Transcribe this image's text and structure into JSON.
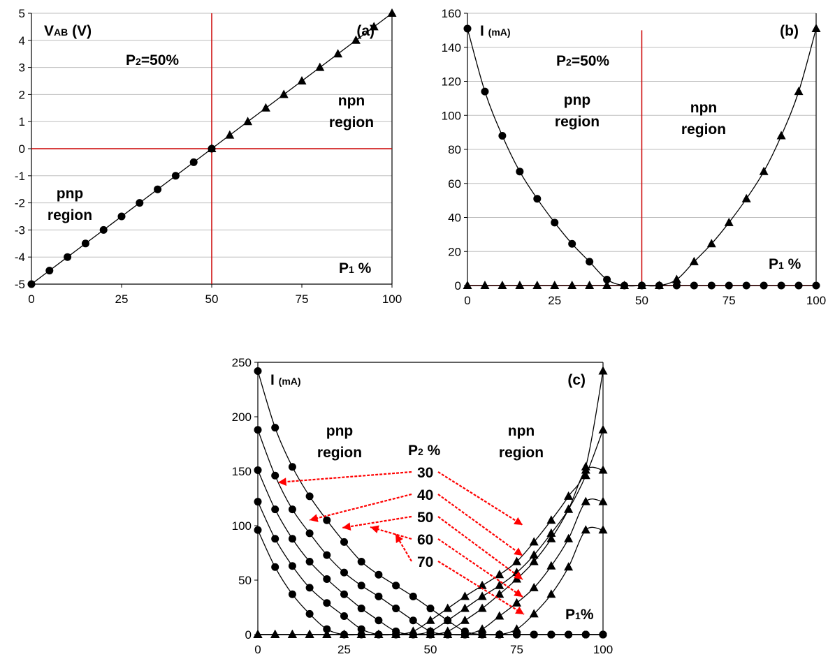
{
  "chart_data": [
    {
      "type": "line",
      "panel_label": "(a)",
      "ylabel": "VAB (V)",
      "xlabel": "P1 %",
      "marker_line_label": "P2=50%",
      "region_labels": {
        "pnp": "pnp region",
        "npn": "npn region"
      },
      "xlim": [
        0,
        100
      ],
      "ylim": [
        -5,
        5
      ],
      "xticks": [
        0,
        25,
        50,
        75,
        100
      ],
      "yticks": [
        -5,
        -4,
        -3,
        -2,
        -1,
        0,
        1,
        2,
        3,
        4,
        5
      ],
      "series": [
        {
          "marker": "circle",
          "x": [
            0,
            5,
            10,
            15,
            20,
            25,
            30,
            35,
            40,
            45,
            50
          ],
          "y": [
            -5,
            -4.5,
            -4,
            -3.5,
            -3,
            -2.5,
            -2,
            -1.5,
            -1,
            -0.5,
            0
          ]
        },
        {
          "marker": "triangle",
          "x": [
            50,
            55,
            60,
            65,
            70,
            75,
            80,
            85,
            90,
            95,
            100
          ],
          "y": [
            0,
            0.5,
            1,
            1.5,
            2,
            2.5,
            3,
            3.5,
            4,
            4.5,
            5
          ]
        }
      ],
      "reference_lines": {
        "x": 50,
        "y": 0,
        "color": "#cc0000"
      },
      "grid": true
    },
    {
      "type": "line",
      "panel_label": "(b)",
      "ylabel": "I (mA)",
      "xlabel": "P1 %",
      "marker_line_label": "P2=50%",
      "region_labels": {
        "pnp": "pnp region",
        "npn": "npn region"
      },
      "xlim": [
        0,
        100
      ],
      "ylim": [
        0,
        160
      ],
      "xticks": [
        0,
        25,
        50,
        75,
        100
      ],
      "yticks": [
        0,
        20,
        40,
        60,
        80,
        100,
        120,
        140,
        160
      ],
      "series": [
        {
          "marker": "circle",
          "x": [
            0,
            5,
            10,
            15,
            20,
            25,
            30,
            35,
            40,
            45,
            50,
            55,
            60,
            65,
            70,
            75,
            80,
            85,
            90,
            95,
            100
          ],
          "y": [
            151,
            114,
            88,
            67,
            51,
            37,
            24.5,
            14,
            3.5,
            0,
            0,
            0,
            0,
            0,
            0,
            0,
            0,
            0,
            0,
            0,
            0
          ]
        },
        {
          "marker": "triangle",
          "x": [
            0,
            5,
            10,
            15,
            20,
            25,
            30,
            35,
            40,
            45,
            50,
            55,
            60,
            65,
            70,
            75,
            80,
            85,
            90,
            95,
            100
          ],
          "y": [
            0,
            0,
            0,
            0,
            0,
            0,
            0,
            0,
            0,
            0,
            0,
            0,
            3.5,
            14,
            24.5,
            37,
            51,
            67,
            88,
            114,
            151
          ]
        }
      ],
      "reference_lines": {
        "x": 50,
        "y": 0,
        "color": "#cc0000"
      },
      "grid": true
    },
    {
      "type": "line",
      "panel_label": "(c)",
      "ylabel": "I (mA)",
      "xlabel": "P1%",
      "parameter_label": "P2 %",
      "parameter_values": [
        "30",
        "40",
        "50",
        "60",
        "70"
      ],
      "region_labels": {
        "pnp": "pnp region",
        "npn": "npn region"
      },
      "xlim": [
        0,
        100
      ],
      "ylim": [
        0,
        250
      ],
      "xticks": [
        0,
        25,
        50,
        75,
        100
      ],
      "yticks": [
        0,
        50,
        100,
        150,
        200,
        250
      ],
      "series": [
        {
          "marker": "circle",
          "x": [
            0,
            5,
            10,
            15,
            20,
            25,
            30,
            35,
            40,
            45,
            50,
            55,
            60,
            65,
            70,
            75,
            80,
            85,
            90,
            95,
            100
          ],
          "y": [
            242,
            190,
            154,
            127,
            105,
            85,
            67,
            55,
            45,
            35,
            24,
            13,
            3,
            0,
            0,
            0,
            0,
            0,
            0,
            0,
            0
          ]
        },
        {
          "marker": "circle",
          "x": [
            0,
            5,
            10,
            15,
            20,
            25,
            30,
            35,
            40,
            45,
            50,
            55,
            60,
            65,
            70,
            75,
            80,
            85,
            90,
            95,
            100
          ],
          "y": [
            188,
            146,
            115,
            93,
            73,
            57,
            45,
            35,
            24,
            13,
            3,
            0,
            0,
            0,
            0,
            0,
            0,
            0,
            0,
            0,
            0
          ]
        },
        {
          "marker": "circle",
          "x": [
            0,
            5,
            10,
            15,
            20,
            25,
            30,
            35,
            40,
            45,
            50,
            55,
            60,
            65,
            70,
            75,
            80,
            85,
            90,
            95,
            100
          ],
          "y": [
            151,
            115,
            88,
            67,
            51,
            37,
            24,
            13,
            3,
            0,
            0,
            0,
            0,
            0,
            0,
            0,
            0,
            0,
            0,
            0,
            0
          ]
        },
        {
          "marker": "circle",
          "x": [
            0,
            5,
            10,
            15,
            20,
            25,
            30,
            35,
            40,
            45,
            50,
            55,
            60,
            65,
            70,
            75,
            80,
            85,
            90,
            95,
            100
          ],
          "y": [
            122,
            88,
            63,
            43,
            29,
            17,
            5,
            0,
            0,
            0,
            0,
            0,
            0,
            0,
            0,
            0,
            0,
            0,
            0,
            0,
            0
          ]
        },
        {
          "marker": "circle",
          "x": [
            0,
            5,
            10,
            15,
            20,
            25,
            30,
            35,
            40,
            45,
            50,
            55,
            60,
            65,
            70,
            75,
            80,
            85,
            90,
            95,
            100
          ],
          "y": [
            96,
            62,
            37,
            19,
            5,
            0,
            0,
            0,
            0,
            0,
            0,
            0,
            0,
            0,
            0,
            0,
            0,
            0,
            0,
            0,
            0
          ]
        },
        {
          "marker": "triangle",
          "x": [
            0,
            5,
            10,
            15,
            20,
            25,
            30,
            35,
            40,
            45,
            50,
            55,
            60,
            65,
            70,
            75,
            80,
            85,
            90,
            95,
            100
          ],
          "y": [
            0,
            0,
            0,
            0,
            0,
            0,
            0,
            0,
            0,
            3,
            13,
            24,
            35,
            45,
            55,
            67,
            85,
            105,
            127,
            154,
            242
          ]
        },
        {
          "marker": "triangle",
          "x": [
            0,
            5,
            10,
            15,
            20,
            25,
            30,
            35,
            40,
            45,
            50,
            55,
            60,
            65,
            70,
            75,
            80,
            85,
            90,
            95,
            100
          ],
          "y": [
            0,
            0,
            0,
            0,
            0,
            0,
            0,
            0,
            0,
            0,
            3,
            13,
            24,
            35,
            45,
            57,
            73,
            93,
            115,
            146,
            188
          ]
        },
        {
          "marker": "triangle",
          "x": [
            0,
            5,
            10,
            15,
            20,
            25,
            30,
            35,
            40,
            45,
            50,
            55,
            60,
            65,
            70,
            75,
            80,
            85,
            90,
            95,
            100
          ],
          "y": [
            0,
            0,
            0,
            0,
            0,
            0,
            0,
            0,
            0,
            0,
            0,
            3,
            13,
            24,
            37,
            51,
            67,
            88,
            115,
            151,
            151
          ]
        },
        {
          "marker": "triangle",
          "x": [
            0,
            5,
            10,
            15,
            20,
            25,
            30,
            35,
            40,
            45,
            50,
            55,
            60,
            65,
            70,
            75,
            80,
            85,
            90,
            95,
            100
          ],
          "y": [
            0,
            0,
            0,
            0,
            0,
            0,
            0,
            0,
            0,
            0,
            0,
            0,
            0,
            5,
            17,
            29,
            43,
            63,
            88,
            122,
            122
          ]
        },
        {
          "marker": "triangle",
          "x": [
            0,
            5,
            10,
            15,
            20,
            25,
            30,
            35,
            40,
            45,
            50,
            55,
            60,
            65,
            70,
            75,
            80,
            85,
            90,
            95,
            100
          ],
          "y": [
            0,
            0,
            0,
            0,
            0,
            0,
            0,
            0,
            0,
            0,
            0,
            0,
            0,
            0,
            0,
            5,
            19,
            37,
            62,
            96,
            96
          ]
        }
      ],
      "arrow_color": "#ff0000",
      "grid": false
    }
  ]
}
